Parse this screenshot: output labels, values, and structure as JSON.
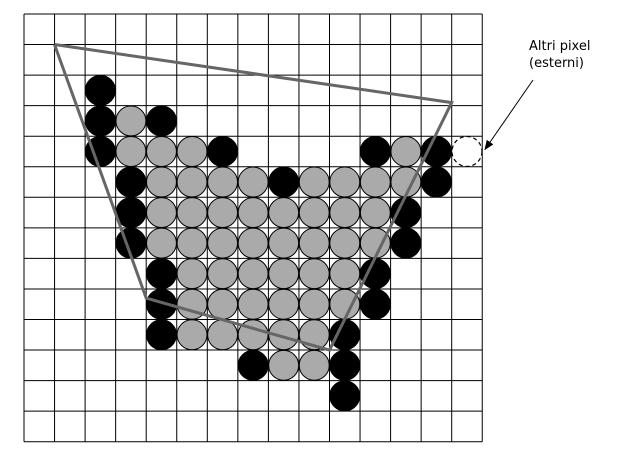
{
  "annotation": {
    "line1": "Altri pixel",
    "line2": "(esterni)"
  },
  "grid": {
    "cols": 15,
    "rows": 14
  },
  "colors": {
    "grid_line": "#000000",
    "edge_pixel": "#000000",
    "interior_pixel": "#aaaaaa",
    "polygon_stroke": "#666666",
    "external_marker": "#000000"
  },
  "polygon_vertices_cells": [
    [
      1,
      1
    ],
    [
      14,
      2.9
    ],
    [
      10,
      11
    ],
    [
      4,
      9.3
    ],
    [
      1,
      1
    ]
  ],
  "edge_pixels_cells": [
    [
      2,
      2
    ],
    [
      2,
      3
    ],
    [
      4,
      3
    ],
    [
      2,
      4
    ],
    [
      6,
      4
    ],
    [
      11,
      4
    ],
    [
      13,
      4
    ],
    [
      3,
      5
    ],
    [
      8,
      5
    ],
    [
      13,
      5
    ],
    [
      3,
      6
    ],
    [
      12,
      6
    ],
    [
      3,
      7
    ],
    [
      12,
      7
    ],
    [
      4,
      8
    ],
    [
      11,
      8
    ],
    [
      4,
      9
    ],
    [
      11,
      9
    ],
    [
      4,
      10
    ],
    [
      10,
      10
    ],
    [
      7,
      11
    ],
    [
      10,
      11
    ],
    [
      10,
      12
    ]
  ],
  "interior_pixels_cells": [
    [
      3,
      3
    ],
    [
      3,
      4
    ],
    [
      4,
      4
    ],
    [
      5,
      4
    ],
    [
      12,
      4
    ],
    [
      4,
      5
    ],
    [
      5,
      5
    ],
    [
      6,
      5
    ],
    [
      7,
      5
    ],
    [
      9,
      5
    ],
    [
      10,
      5
    ],
    [
      11,
      5
    ],
    [
      12,
      5
    ],
    [
      4,
      6
    ],
    [
      5,
      6
    ],
    [
      6,
      6
    ],
    [
      7,
      6
    ],
    [
      8,
      6
    ],
    [
      9,
      6
    ],
    [
      10,
      6
    ],
    [
      11,
      6
    ],
    [
      4,
      7
    ],
    [
      5,
      7
    ],
    [
      6,
      7
    ],
    [
      7,
      7
    ],
    [
      8,
      7
    ],
    [
      9,
      7
    ],
    [
      10,
      7
    ],
    [
      11,
      7
    ],
    [
      5,
      8
    ],
    [
      6,
      8
    ],
    [
      7,
      8
    ],
    [
      8,
      8
    ],
    [
      9,
      8
    ],
    [
      10,
      8
    ],
    [
      5,
      9
    ],
    [
      6,
      9
    ],
    [
      7,
      9
    ],
    [
      8,
      9
    ],
    [
      9,
      9
    ],
    [
      10,
      9
    ],
    [
      5,
      10
    ],
    [
      6,
      10
    ],
    [
      7,
      10
    ],
    [
      8,
      10
    ],
    [
      9,
      10
    ],
    [
      8,
      11
    ],
    [
      9,
      11
    ]
  ],
  "external_pixels_cells": [
    [
      14,
      4
    ]
  ]
}
